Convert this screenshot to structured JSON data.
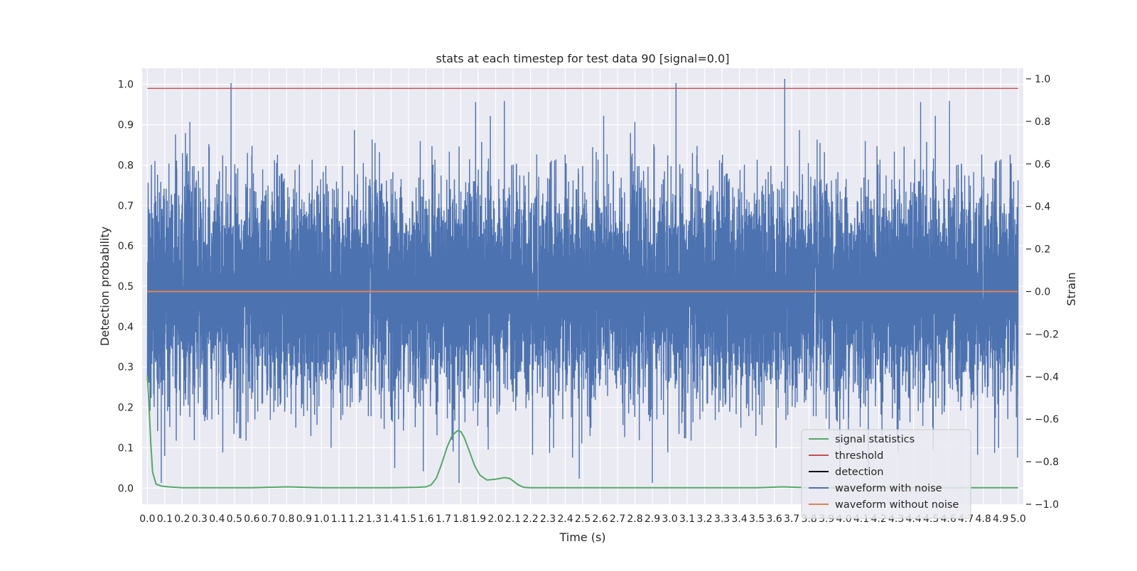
{
  "chart_data": {
    "type": "line",
    "title": "stats at each timestep for test data 90 [signal=0.0]",
    "xlabel": "Time (s)",
    "ylabel_left": "Detection probability",
    "ylabel_right": "Strain",
    "xlim": [
      -0.03,
      5.03
    ],
    "ylim_left": [
      -0.04,
      1.04
    ],
    "ylim_right": [
      -1.0,
      1.05
    ],
    "x_ticks": [
      "0.0",
      "0.1",
      "0.2",
      "0.3",
      "0.4",
      "0.5",
      "0.6",
      "0.7",
      "0.8",
      "0.9",
      "1.0",
      "1.1",
      "1.2",
      "1.3",
      "1.4",
      "1.5",
      "1.6",
      "1.7",
      "1.8",
      "1.9",
      "2.0",
      "2.1",
      "2.2",
      "2.3",
      "2.4",
      "2.5",
      "2.6",
      "2.7",
      "2.8",
      "2.9",
      "3.0",
      "3.1",
      "3.2",
      "3.3",
      "3.4",
      "3.5",
      "3.6",
      "3.7",
      "3.8",
      "3.9",
      "4.0",
      "4.1",
      "4.2",
      "4.3",
      "4.4",
      "4.5",
      "4.6",
      "4.7",
      "4.8",
      "4.9",
      "5.0"
    ],
    "y_ticks_left": [
      "0.0",
      "0.1",
      "0.2",
      "0.3",
      "0.4",
      "0.5",
      "0.6",
      "0.7",
      "0.8",
      "0.9",
      "1.0"
    ],
    "y_ticks_right": [
      "−1.0",
      "−0.8",
      "−0.6",
      "−0.4",
      "−0.2",
      "0.0",
      "0.2",
      "0.4",
      "0.6",
      "0.8",
      "1.0"
    ],
    "grid": true,
    "legend_position": "lower-right",
    "colors": {
      "signal_statistics": "#55a868",
      "threshold": "#c44e52",
      "detection": "#000000",
      "waveform_with_noise": "#4c72b0",
      "waveform_without_noise": "#dd8452",
      "plot_background": "#eaeaf2",
      "grid": "#ffffff"
    },
    "series": [
      {
        "name": "signal statistics",
        "axis": "left",
        "x": [
          0.0,
          0.01,
          0.02,
          0.03,
          0.05,
          0.08,
          0.12,
          0.2,
          0.4,
          0.6,
          0.8,
          1.0,
          1.2,
          1.4,
          1.55,
          1.6,
          1.63,
          1.66,
          1.69,
          1.72,
          1.75,
          1.78,
          1.8,
          1.82,
          1.85,
          1.88,
          1.91,
          1.95,
          2.0,
          2.05,
          2.08,
          2.1,
          2.13,
          2.16,
          2.2,
          2.3,
          2.6,
          3.0,
          3.5,
          3.65,
          3.8,
          4.2,
          4.6,
          5.0
        ],
        "y": [
          0.28,
          0.2,
          0.11,
          0.04,
          0.01,
          0.005,
          0.003,
          0.001,
          0.001,
          0.001,
          0.003,
          0.001,
          0.001,
          0.001,
          0.002,
          0.003,
          0.008,
          0.025,
          0.06,
          0.1,
          0.13,
          0.142,
          0.14,
          0.125,
          0.09,
          0.055,
          0.032,
          0.02,
          0.022,
          0.026,
          0.024,
          0.018,
          0.008,
          0.002,
          0.001,
          0.001,
          0.001,
          0.001,
          0.001,
          0.003,
          0.001,
          0.001,
          0.001,
          0.001
        ]
      },
      {
        "name": "threshold",
        "axis": "left",
        "x": [
          0.0,
          5.0
        ],
        "y": [
          0.99,
          0.99
        ]
      },
      {
        "name": "detection",
        "axis": "left",
        "x": [],
        "y": []
      },
      {
        "name": "waveform with noise",
        "axis": "right",
        "sample_rate": 2048,
        "distribution": "noise, approx std 0.25, peaks to about 1.0 / -0.92",
        "notable_extremes": [
          {
            "x": 3.66,
            "y": 1.0
          },
          {
            "x": 1.79,
            "y": -0.9
          },
          {
            "x": 2.9,
            "y": -0.9
          },
          {
            "x": 0.08,
            "y": -0.9
          },
          {
            "x": 2.48,
            "y": -0.88
          }
        ]
      },
      {
        "name": "waveform without noise",
        "axis": "right",
        "x": [
          0.0,
          5.0
        ],
        "y": [
          0.0,
          0.0
        ]
      }
    ],
    "legend": [
      "signal statistics",
      "threshold",
      "detection",
      "waveform with noise",
      "waveform without noise"
    ]
  }
}
